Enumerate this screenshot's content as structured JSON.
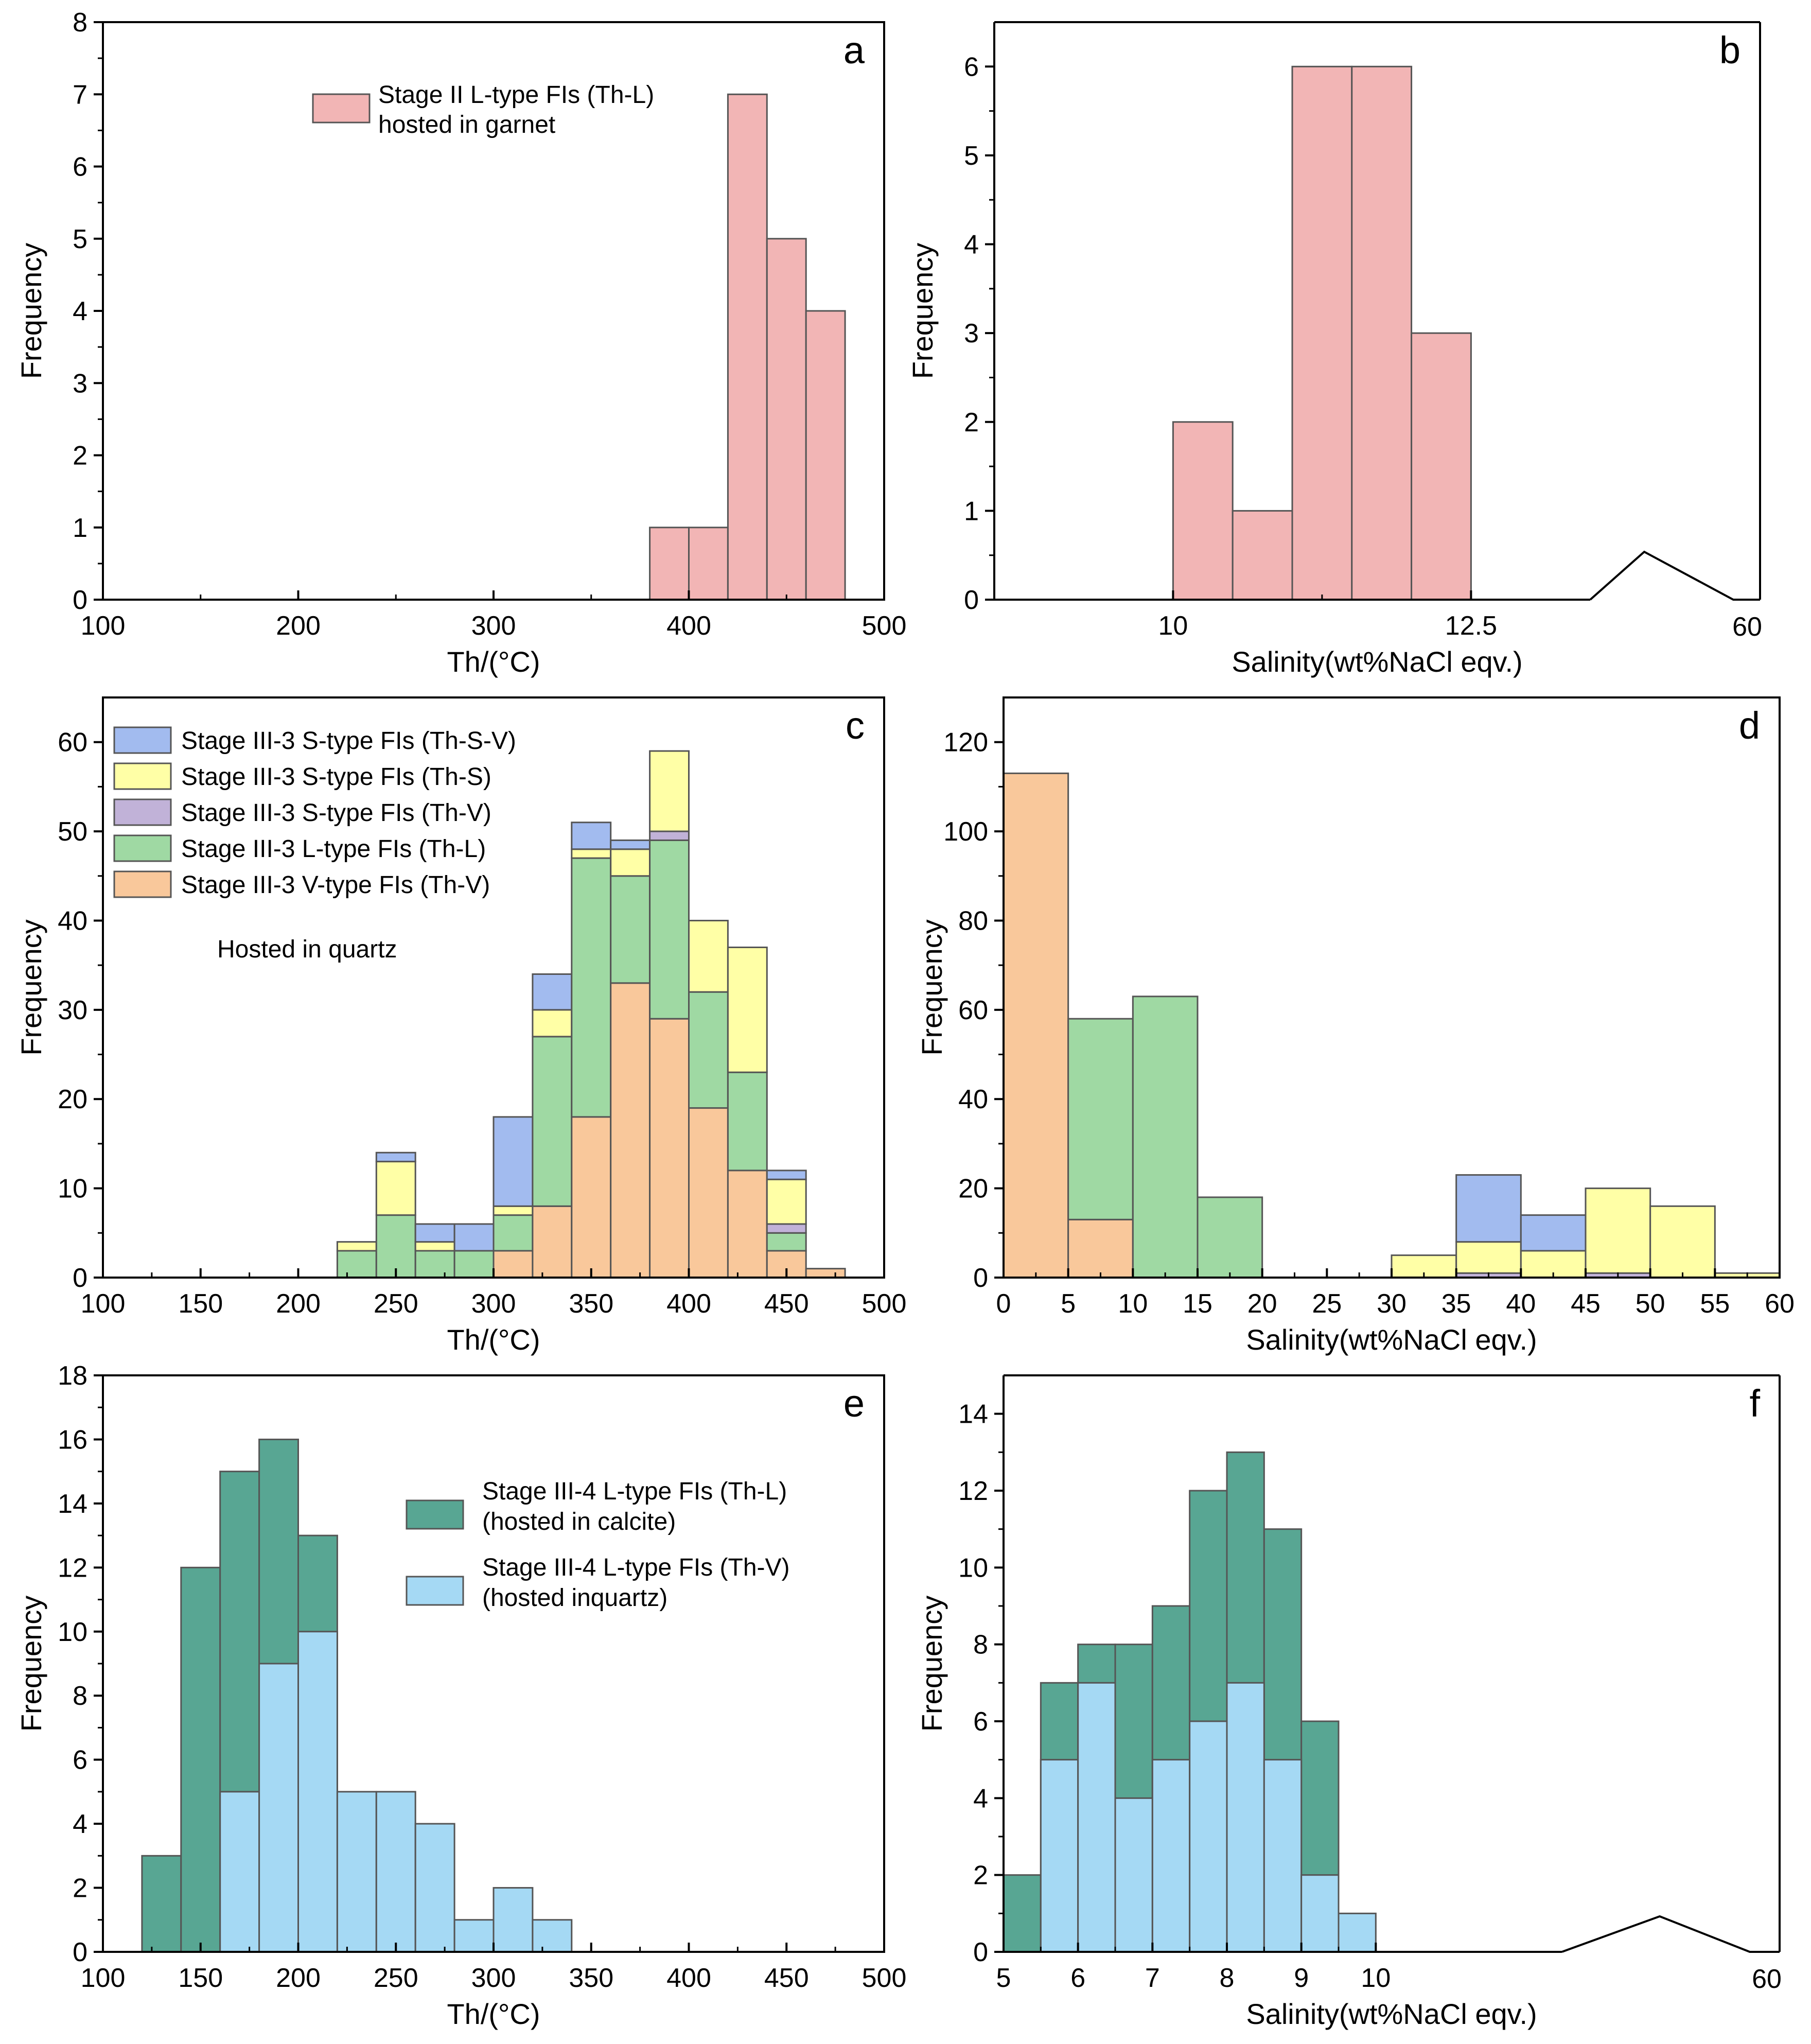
{
  "colors": {
    "pink": "#F2B5B5",
    "orange": "#F9C89B",
    "green": "#9FD9A3",
    "purple": "#C1B2D8",
    "yellow": "#FFFFA6",
    "blue": "#A2BBEF",
    "teal": "#58A693",
    "lightblue": "#A5D9F4",
    "edge": "#555555"
  },
  "chart_data": [
    {
      "id": "a",
      "letter": "a",
      "type": "bar",
      "title": "",
      "xlabel": "Th/(°C)",
      "ylabel": "Frequency",
      "xlim": [
        100,
        500
      ],
      "ylim": [
        0,
        8
      ],
      "xticks": [
        100,
        200,
        300,
        400,
        500
      ],
      "yticks": [
        0,
        1,
        2,
        3,
        4,
        5,
        6,
        7,
        8
      ],
      "stacked": false,
      "bin_width": 20,
      "legend": [
        {
          "name": "Stage II L-type FIs (Th-L)",
          "name2": "hosted in garnet",
          "color": "pink"
        }
      ],
      "series": [
        {
          "name": "Stage II L-type FIs (Th-L)",
          "color": "pink",
          "x": [
            380,
            400,
            420,
            440,
            460
          ],
          "values": [
            1,
            1,
            7,
            5,
            4
          ]
        }
      ]
    },
    {
      "id": "b",
      "letter": "b",
      "type": "bar",
      "title": "",
      "xlabel": "Salinity(wt%NaCl eqv.)",
      "ylabel": "Frequency",
      "xlim": [
        8.5,
        13.5
      ],
      "ylim": [
        0,
        6.5
      ],
      "xticks": [
        10,
        12.5
      ],
      "tick_labels": [
        "10",
        "12.5"
      ],
      "yticks": [
        0,
        1,
        2,
        3,
        4,
        5,
        6
      ],
      "axis_break": true,
      "break_label": "60",
      "stacked": false,
      "bin_width": 0.5,
      "series": [
        {
          "name": "Stage II L-type FIs (Th-L)",
          "color": "pink",
          "x": [
            10,
            10.5,
            11,
            11.5,
            12
          ],
          "values": [
            2,
            1,
            6,
            6,
            3
          ]
        }
      ]
    },
    {
      "id": "c",
      "letter": "c",
      "type": "bar",
      "title": "",
      "xlabel": "Th/(°C)",
      "ylabel": "Frequency",
      "xlim": [
        100,
        500
      ],
      "ylim": [
        0,
        65
      ],
      "xticks": [
        100,
        150,
        200,
        250,
        300,
        350,
        400,
        450,
        500
      ],
      "yticks": [
        0,
        10,
        20,
        30,
        40,
        50,
        60
      ],
      "stacked": true,
      "bin_width": 20,
      "annotation": "Hosted in quartz",
      "legend": [
        {
          "name": "Stage III-3 S-type FIs (Th-S-V)",
          "color": "blue"
        },
        {
          "name": "Stage III-3 S-type FIs (Th-S)",
          "color": "yellow"
        },
        {
          "name": "Stage III-3 S-type FIs (Th-V)",
          "color": "purple"
        },
        {
          "name": "Stage III-3 L-type FIs (Th-L)",
          "color": "green"
        },
        {
          "name": "Stage III-3 V-type FIs (Th-V)",
          "color": "orange"
        }
      ],
      "x": [
        220,
        240,
        260,
        280,
        300,
        320,
        340,
        360,
        380,
        400,
        420,
        440,
        460
      ],
      "series": [
        {
          "name": "Stage III-3 V-type FIs (Th-V)",
          "color": "orange",
          "values": [
            0,
            0,
            0,
            0,
            3,
            8,
            18,
            33,
            29,
            19,
            12,
            3,
            1
          ]
        },
        {
          "name": "Stage III-3 L-type FIs (Th-L)",
          "color": "green",
          "values": [
            3,
            7,
            3,
            3,
            4,
            19,
            29,
            12,
            20,
            13,
            11,
            2,
            0
          ]
        },
        {
          "name": "Stage III-3 S-type FIs (Th-V)",
          "color": "purple",
          "values": [
            0,
            0,
            0,
            0,
            0,
            0,
            0,
            0,
            1,
            0,
            0,
            1,
            0
          ]
        },
        {
          "name": "Stage III-3 S-type FIs (Th-S)",
          "color": "yellow",
          "values": [
            1,
            6,
            1,
            0,
            1,
            3,
            1,
            3,
            9,
            8,
            14,
            5,
            0
          ]
        },
        {
          "name": "Stage III-3 S-type FIs (Th-S-V)",
          "color": "blue",
          "values": [
            0,
            1,
            2,
            3,
            10,
            4,
            3,
            1,
            0,
            0,
            0,
            1,
            0
          ]
        }
      ]
    },
    {
      "id": "d",
      "letter": "d",
      "type": "bar",
      "title": "",
      "xlabel": "Salinity(wt%NaCl eqv.)",
      "ylabel": "Frequency",
      "xlim": [
        0,
        60
      ],
      "ylim": [
        0,
        130
      ],
      "xticks": [
        0,
        5,
        10,
        15,
        20,
        25,
        30,
        35,
        40,
        45,
        50,
        55,
        60
      ],
      "yticks": [
        0,
        20,
        40,
        60,
        80,
        100,
        120
      ],
      "stacked": true,
      "bin_width": 5,
      "x": [
        0,
        5,
        10,
        15,
        30,
        35,
        40,
        45,
        50,
        55
      ],
      "series": [
        {
          "name": "Stage III-3 V-type FIs (Th-V)",
          "color": "orange",
          "values": [
            113,
            13,
            0,
            0,
            0,
            0,
            0,
            0,
            0,
            0
          ]
        },
        {
          "name": "Stage III-3 L-type FIs (Th-L)",
          "color": "green",
          "values": [
            0,
            45,
            63,
            18,
            0,
            0,
            0,
            0,
            0,
            0
          ]
        },
        {
          "name": "Stage III-3 S-type FIs (Th-V)",
          "color": "purple",
          "values": [
            0,
            0,
            0,
            0,
            0,
            1,
            0,
            1,
            0,
            0
          ]
        },
        {
          "name": "Stage III-3 S-type FIs (Th-S)",
          "color": "yellow",
          "values": [
            0,
            0,
            0,
            0,
            5,
            7,
            6,
            19,
            16,
            1
          ]
        },
        {
          "name": "Stage III-3 S-type FIs (Th-S-V)",
          "color": "blue",
          "values": [
            0,
            0,
            0,
            0,
            0,
            15,
            8,
            0,
            0,
            0
          ]
        }
      ]
    },
    {
      "id": "e",
      "letter": "e",
      "type": "bar",
      "title": "",
      "xlabel": "Th/(°C)",
      "ylabel": "Frequency",
      "xlim": [
        100,
        500
      ],
      "ylim": [
        0,
        18
      ],
      "xticks": [
        100,
        150,
        200,
        250,
        300,
        350,
        400,
        450,
        500
      ],
      "yticks": [
        0,
        2,
        4,
        6,
        8,
        10,
        12,
        14,
        16,
        18
      ],
      "stacked": false,
      "bin_width": 20,
      "legend": [
        {
          "name": "Stage III-4 L-type FIs (Th-L)",
          "name2": "(hosted in calcite)",
          "color": "teal"
        },
        {
          "name": "Stage III-4 L-type FIs (Th-V)",
          "name2": "(hosted inquartz)",
          "color": "lightblue"
        }
      ],
      "series": [
        {
          "name": "Stage III-4 L-type FIs (Th-L)",
          "color": "teal",
          "x": [
            120,
            140,
            160,
            180,
            200
          ],
          "values": [
            3,
            12,
            15,
            16,
            13
          ]
        },
        {
          "name": "Stage III-4 L-type FIs (Th-V)",
          "color": "lightblue",
          "x": [
            160,
            180,
            200,
            220,
            240,
            260,
            280,
            300,
            320
          ],
          "values": [
            5,
            9,
            10,
            5,
            5,
            4,
            1,
            2,
            1
          ]
        }
      ]
    },
    {
      "id": "f",
      "letter": "f",
      "type": "bar",
      "title": "",
      "xlabel": "Salinity(wt%NaCl eqv.)",
      "ylabel": "Frequency",
      "xlim": [
        5,
        12.5
      ],
      "ylim": [
        0,
        15
      ],
      "xticks": [
        5,
        6,
        7,
        8,
        9,
        10
      ],
      "yticks": [
        0,
        2,
        4,
        6,
        8,
        10,
        12,
        14
      ],
      "axis_break": true,
      "break_label": "60",
      "stacked": false,
      "bin_width": 0.5,
      "series": [
        {
          "name": "Stage III-4 L-type FIs (Th-L)",
          "color": "teal",
          "x": [
            5,
            5.5,
            6,
            6.5,
            7,
            7.5,
            8,
            8.5,
            9
          ],
          "values": [
            2,
            7,
            8,
            8,
            9,
            12,
            13,
            11,
            6
          ]
        },
        {
          "name": "Stage III-4 L-type FIs (Th-V)",
          "color": "lightblue",
          "x": [
            5.5,
            6,
            6.5,
            7,
            7.5,
            8,
            8.5,
            9,
            9.5
          ],
          "values": [
            5,
            7,
            4,
            5,
            6,
            7,
            5,
            2,
            1
          ]
        }
      ]
    }
  ]
}
